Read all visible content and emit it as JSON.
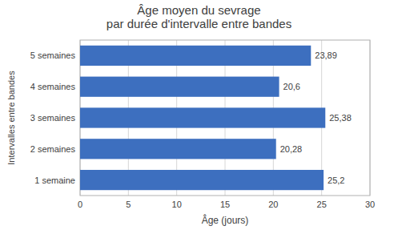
{
  "chart_data": {
    "type": "bar",
    "orientation": "horizontal",
    "title": "Âge moyen du sevrage\npar durée d'intervalle entre bandes",
    "categories": [
      "1 semaine",
      "2 semaines",
      "3 semaines",
      "4 semaines",
      "5 semaines"
    ],
    "values": [
      25.2,
      20.28,
      25.38,
      20.6,
      23.89
    ],
    "value_labels": [
      "25,2",
      "20,28",
      "25,38",
      "20,6",
      "23,89"
    ],
    "data_labels": true,
    "color": "#3D6FBF",
    "xlabel": "Âge (jours)",
    "ylabel": "Intervalles entre bandes",
    "xlim": [
      0,
      30
    ],
    "xticks": [
      0,
      5,
      10,
      15,
      20,
      25,
      30
    ],
    "grid": true
  }
}
